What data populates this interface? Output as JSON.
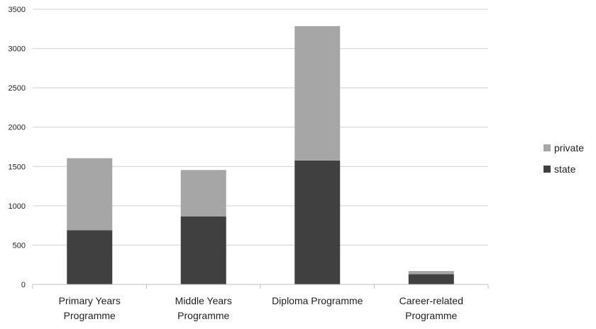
{
  "chart_data": {
    "type": "bar",
    "stacked": true,
    "categories": [
      [
        "Primary Years",
        "Programme"
      ],
      [
        "Middle Years",
        "Programme"
      ],
      [
        "Diploma Programme"
      ],
      [
        "Career-related",
        "Programme"
      ]
    ],
    "series": [
      {
        "name": "state",
        "color": "#404040",
        "values": [
          690,
          865,
          1575,
          130
        ]
      },
      {
        "name": "private",
        "color": "#a6a6a6",
        "values": [
          915,
          590,
          1710,
          40
        ]
      }
    ],
    "yticks": [
      0,
      500,
      1000,
      1500,
      2000,
      2500,
      3000,
      3500
    ],
    "ylim": [
      0,
      3500
    ],
    "grid": true,
    "legend": "right",
    "legend_order": [
      "private",
      "state"
    ]
  }
}
